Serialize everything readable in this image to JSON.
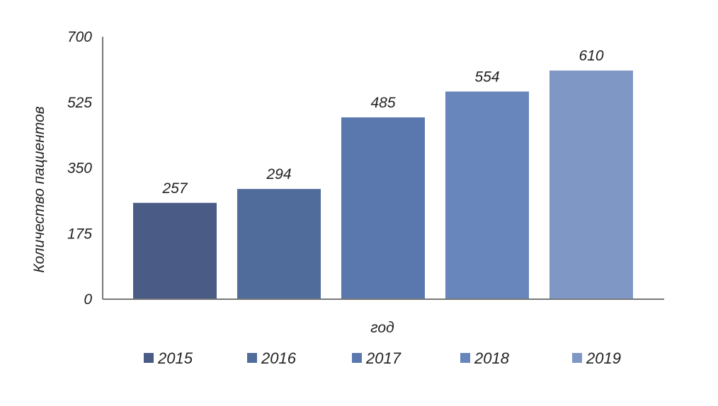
{
  "chart_data": {
    "type": "bar",
    "categories": [
      "2015",
      "2016",
      "2017",
      "2018",
      "2019"
    ],
    "values": [
      257,
      294,
      485,
      554,
      610
    ],
    "data_labels": [
      "257",
      "294",
      "485",
      "554",
      "610"
    ],
    "colors": [
      "#4a5b86",
      "#506c9a",
      "#5a77ae",
      "#6886bc",
      "#7f97c4"
    ],
    "title": "",
    "xlabel": "год",
    "ylabel": "Количество пациентов",
    "ylim": [
      0,
      700
    ],
    "yticks": [
      0,
      175,
      350,
      525,
      700
    ],
    "ytick_labels": [
      "0",
      "175",
      "350",
      "525",
      "700"
    ],
    "grid": false,
    "legend": {
      "position": "bottom",
      "entries": [
        "2015",
        "2016",
        "2017",
        "2018",
        "2019"
      ]
    }
  }
}
